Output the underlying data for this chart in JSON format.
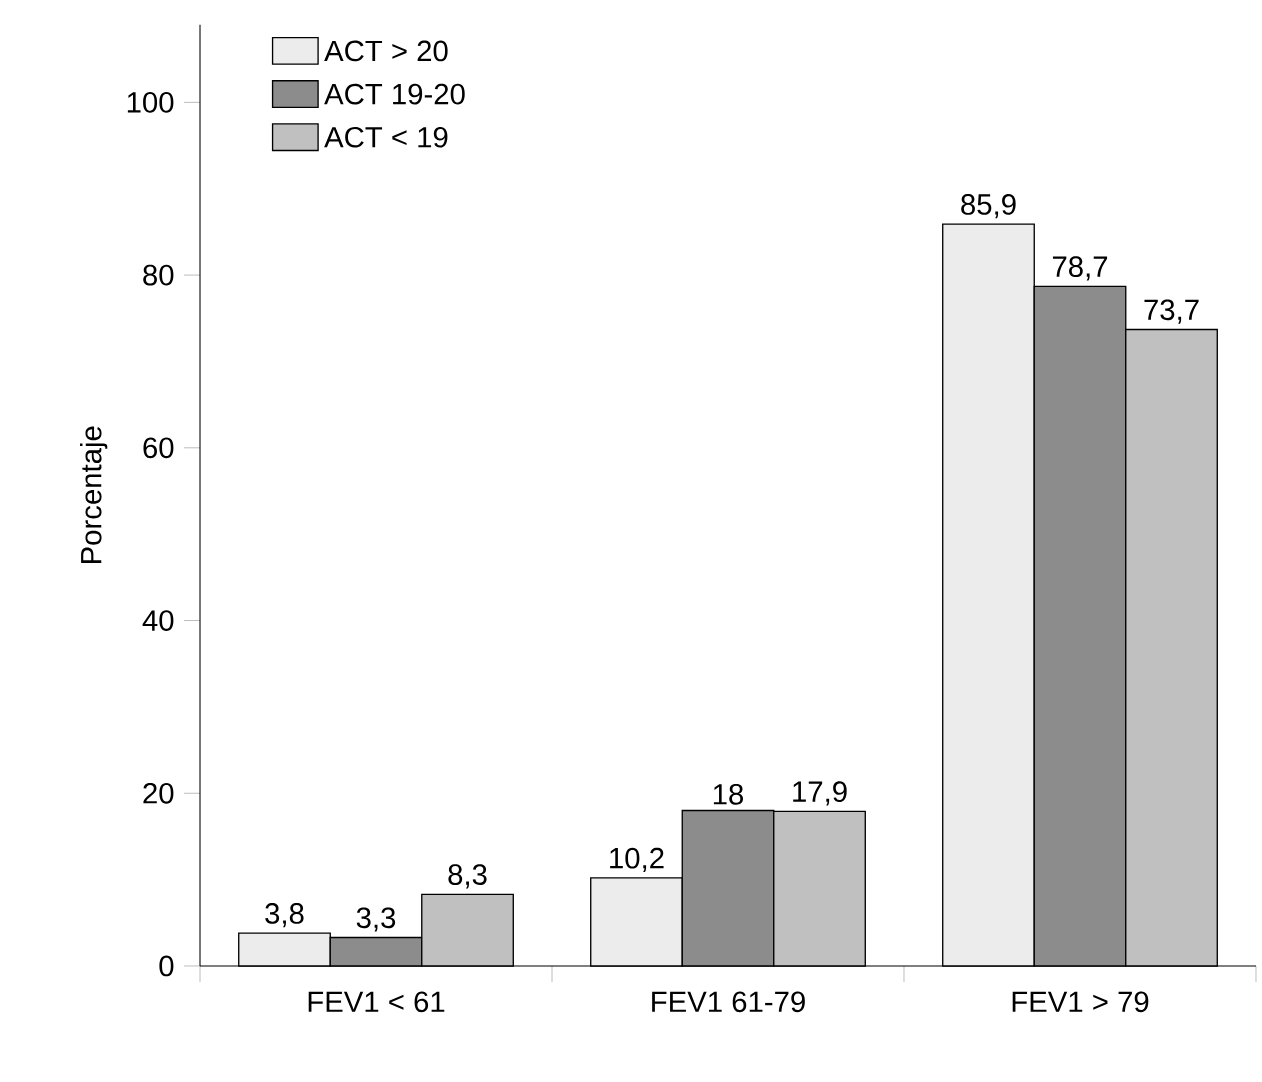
{
  "chart_data": {
    "type": "bar",
    "ylabel": "Porcentaje",
    "categories": [
      "FEV1 < 61",
      "FEV1 61-79",
      "FEV1 > 79"
    ],
    "series": [
      {
        "name": "ACT > 20",
        "color": "#ececec",
        "values": [
          3.8,
          10.2,
          85.9
        ],
        "value_labels": [
          "3,8",
          "10,2",
          "85,9"
        ]
      },
      {
        "name": "ACT 19-20",
        "color": "#8c8c8c",
        "values": [
          3.3,
          18,
          78.7
        ],
        "value_labels": [
          "3,3",
          "18",
          "78,7"
        ]
      },
      {
        "name": "ACT < 19",
        "color": "#c0c0c0",
        "values": [
          8.3,
          17.9,
          73.7
        ],
        "value_labels": [
          "8,3",
          "17,9",
          "73,7"
        ]
      }
    ],
    "ylim": [
      0,
      109
    ],
    "yticks": [
      0,
      20,
      40,
      60,
      80,
      100
    ],
    "grid": false,
    "legend": "top left"
  }
}
